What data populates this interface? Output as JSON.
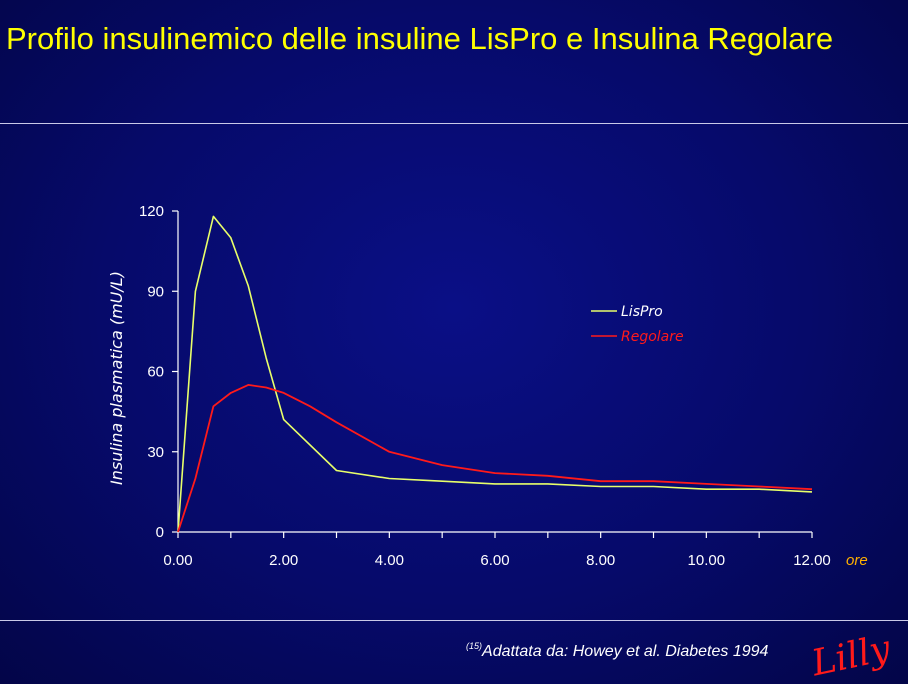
{
  "slide": {
    "title": "Profilo insulinemico delle insuline LisPro e Insulina Regolare",
    "source_ref": "(15)",
    "source_text": "Adattata da: Howey et al. Diabetes 1994",
    "logo_text": "Lilly"
  },
  "colors": {
    "title": "#ffff00",
    "lispro": "#e8ff6a",
    "regolare": "#ff1a1a",
    "unit_label": "#ffb000",
    "logo": "#ff1a1a"
  },
  "chart_data": {
    "type": "line",
    "ylabel": "Insulina plasmatica (mU/L)",
    "x_unit_label": "ore",
    "xlim": [
      0,
      12
    ],
    "ylim": [
      0,
      120
    ],
    "x_ticks": [
      "0.00",
      "2.00",
      "4.00",
      "6.00",
      "8.00",
      "10.00",
      "12.00"
    ],
    "y_ticks": [
      "0",
      "30",
      "60",
      "90",
      "120"
    ],
    "legend_position": "right",
    "grid": false,
    "series": [
      {
        "name": "LisPro",
        "x": [
          0,
          0.33,
          0.67,
          1.0,
          1.33,
          1.67,
          2.0,
          3.0,
          4.0,
          5.0,
          6.0,
          7.0,
          8.0,
          9.0,
          10.0,
          11.0,
          12.0
        ],
        "values": [
          0,
          90,
          118,
          110,
          92,
          65,
          42,
          23,
          20,
          19,
          18,
          18,
          17,
          17,
          16,
          16,
          15
        ]
      },
      {
        "name": "Regolare",
        "x": [
          0,
          0.33,
          0.67,
          1.0,
          1.33,
          1.67,
          2.0,
          2.5,
          3.0,
          4.0,
          5.0,
          6.0,
          7.0,
          8.0,
          9.0,
          10.0,
          11.0,
          12.0
        ],
        "values": [
          0,
          20,
          47,
          52,
          55,
          54,
          52,
          47,
          41,
          30,
          25,
          22,
          21,
          19,
          19,
          18,
          17,
          16
        ]
      }
    ]
  }
}
